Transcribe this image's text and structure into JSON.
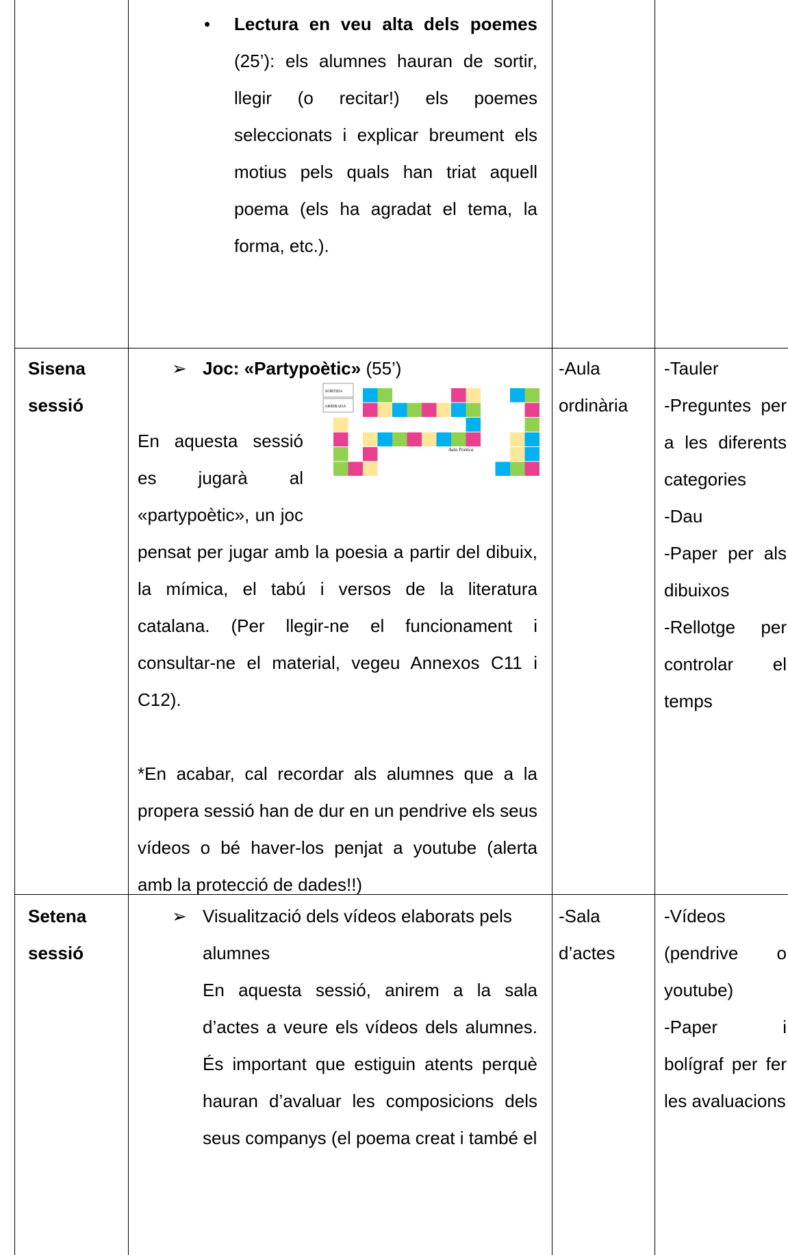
{
  "table": {
    "rows": [
      {
        "activity": {
          "title": "Lectura en veu alta dels poemes",
          "text": "(25’): els alumnes hauran de sortir, llegir (o recitar!) els poemes seleccionats i explicar breument els motius pels quals han triat aquell poema (els ha agradat el tema, la forma, etc.)."
        }
      },
      {
        "session": "Sisena sessió",
        "activity": {
          "title": "Joc: «Partypoètic»",
          "duration": "(55’)",
          "paragraphs": [
            "En aquesta sessió es jugarà al «partypoètic», un joc pensat per jugar amb la poesia a partir del dibuix, la mímica, el tabú i versos de la literatura catalana. (Per llegir-ne el funcionament i consultar-ne el material, vegeu Annexos C11 i C12).",
            "*En acabar, cal recordar als alumnes que a la propera sessió han de dur en un pendrive els seus vídeos o bé haver-los penjat a youtube (alerta amb la protecció de dades!!)"
          ],
          "board": {
            "start": "SORTIDA",
            "finish": "ARRIBADA",
            "name": "Aula Poètica"
          }
        },
        "space": "-Aula ordinària",
        "materials": [
          "-Tauler",
          "-Preguntes per a les diferents categories",
          "-Dau",
          "-Paper per als dibuixos",
          "-Rellotge per controlar el temps"
        ]
      },
      {
        "session": "Setena sessió",
        "activity": {
          "title": "Visualització dels vídeos elaborats pels alumnes",
          "paragraphs": [
            "En aquesta sessió, anirem a la sala d’actes a veure els vídeos dels alumnes. És important que estiguin atents perquè hauran d’avaluar les composicions dels seus companys (el poema creat i també el"
          ]
        },
        "space": "-Sala d’actes",
        "materials": [
          "-Vídeos (pendrive o youtube)",
          "-Paper i bolígraf per fer les avaluacions"
        ]
      }
    ]
  }
}
